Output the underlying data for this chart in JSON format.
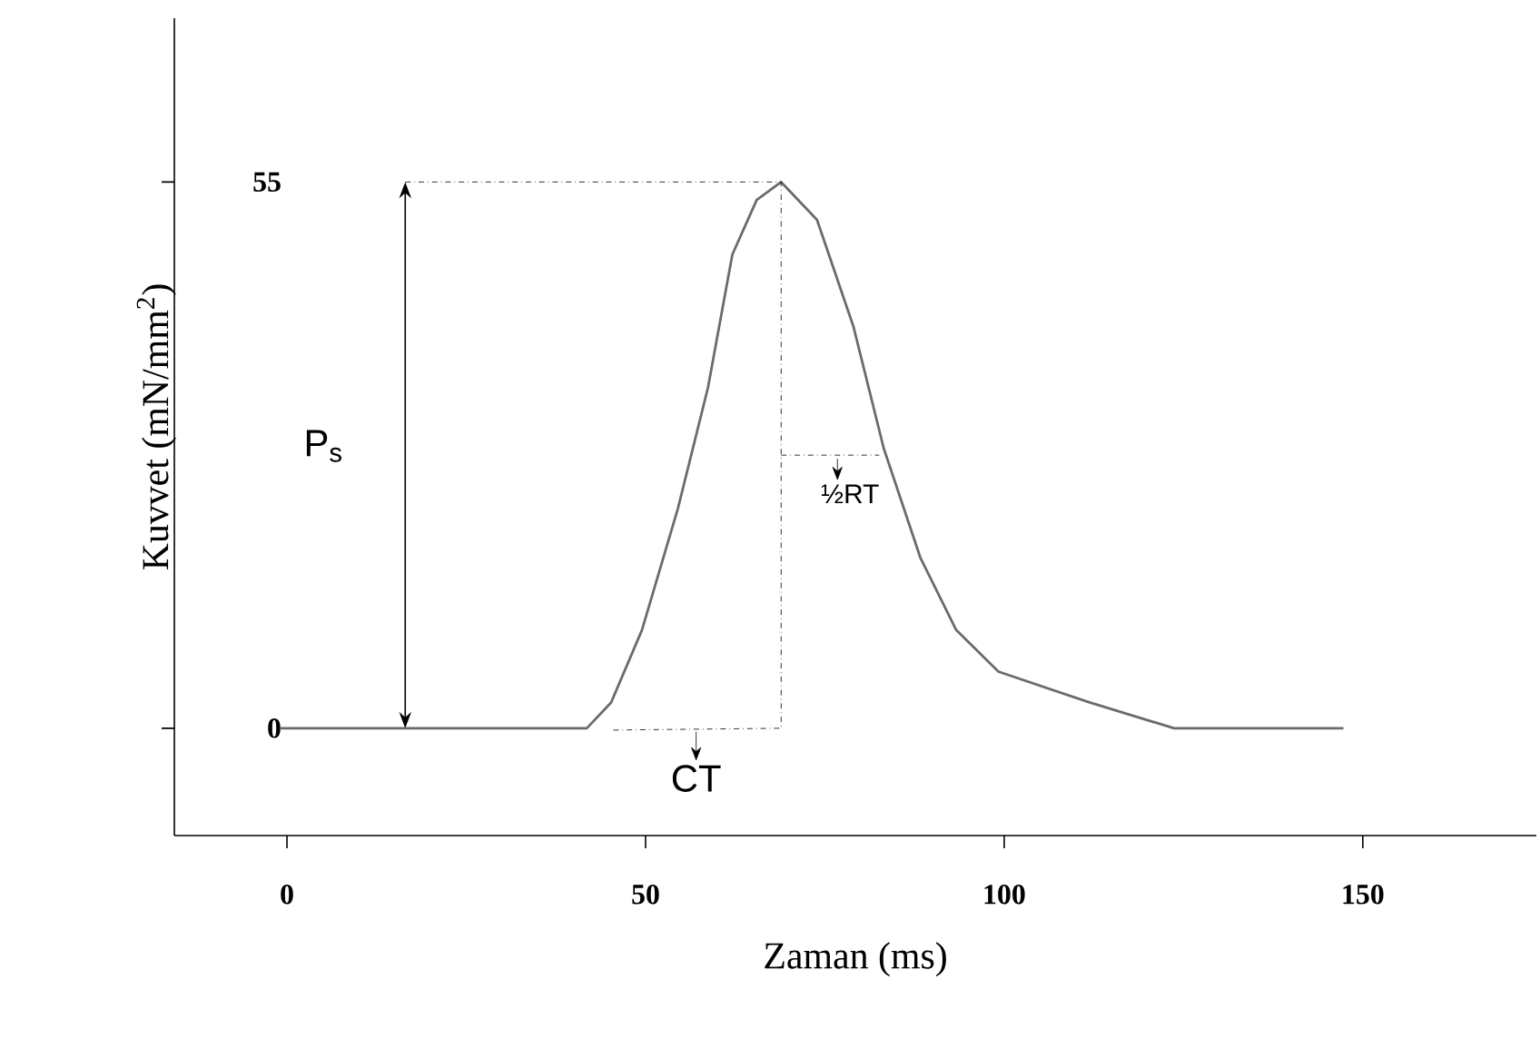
{
  "chart_data": {
    "type": "line",
    "xlabel": "Zaman (ms)",
    "ylabel": "Kuvvet (mN/mm$^{2}$)",
    "x": [
      -1,
      41.8,
      45.2,
      49.5,
      54.5,
      58.7,
      62.1,
      65.5,
      68.9,
      73.9,
      79,
      83.2,
      88.3,
      93.3,
      99.2,
      111.9,
      123.7,
      147.3
    ],
    "values": [
      0,
      0,
      2.6,
      9.9,
      22.1,
      34.3,
      47.7,
      53.2,
      55,
      51.2,
      40.4,
      28.2,
      17.2,
      9.9,
      5.7,
      2.6,
      0,
      0
    ],
    "color": "#6b6b6b",
    "marker": "none",
    "line_style": "solid",
    "xlim": [
      -15.7,
      174.2
    ],
    "ylim": [
      -10.8,
      71.5
    ],
    "xticks": [
      0,
      50,
      100,
      150
    ],
    "yticks": [
      0,
      55
    ],
    "annotations": [
      "P$_{s}$",
      "CT",
      "½RT"
    ]
  }
}
